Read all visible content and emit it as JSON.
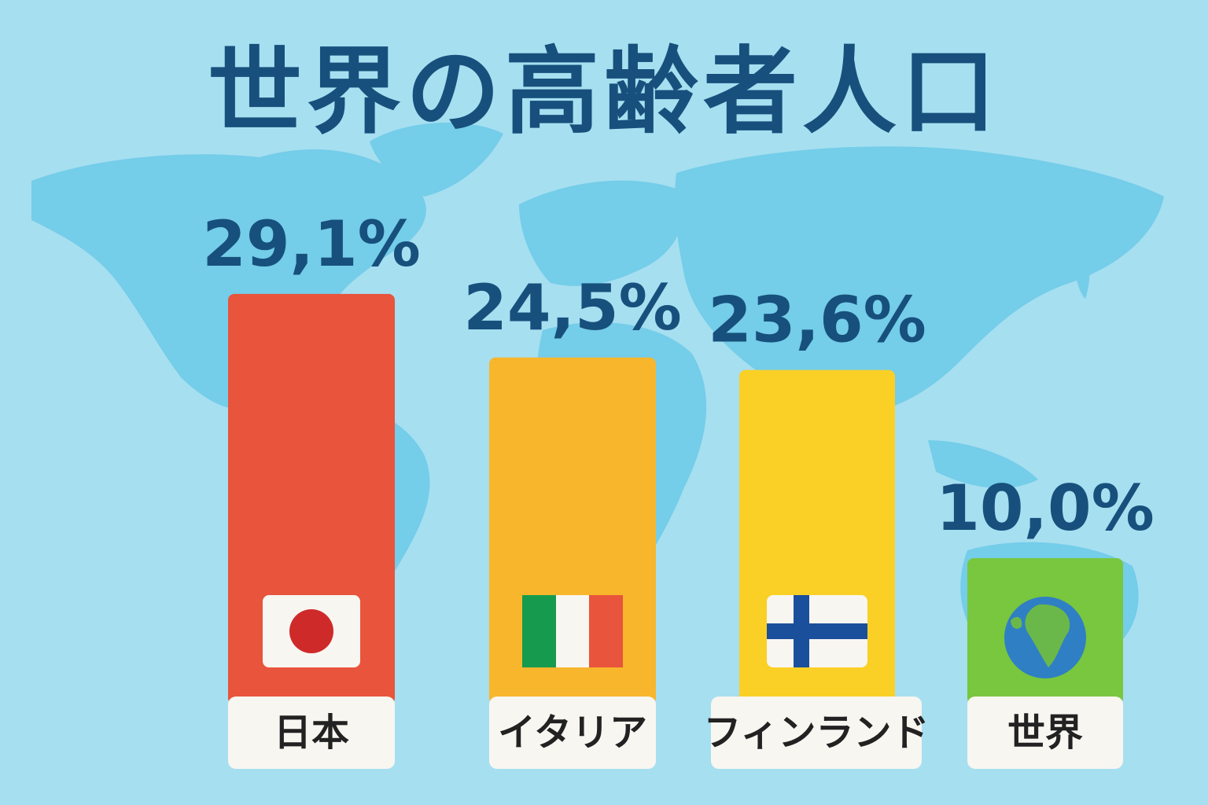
{
  "chart_data": {
    "type": "bar",
    "title": "世界の高齢者人口",
    "categories": [
      "日本",
      "イタリア",
      "フィンランド",
      "世界"
    ],
    "values": [
      29.1,
      24.5,
      23.6,
      10.0
    ],
    "value_labels": [
      "29,1%",
      "24,5%",
      "23,6%",
      "10,0%"
    ],
    "unit": "%",
    "bar_colors": [
      "#e8543c",
      "#f8b62c",
      "#fad026",
      "#79c63f"
    ],
    "icons": [
      "japan-flag-icon",
      "italy-flag-icon",
      "finland-flag-icon",
      "globe-icon"
    ],
    "xlabel": "",
    "ylabel": "",
    "grid": false,
    "legend": "none"
  },
  "colors": {
    "background": "#a6dff0",
    "map": "#74cde9",
    "title": "#17507c",
    "label_box": "#f8f6f0"
  }
}
